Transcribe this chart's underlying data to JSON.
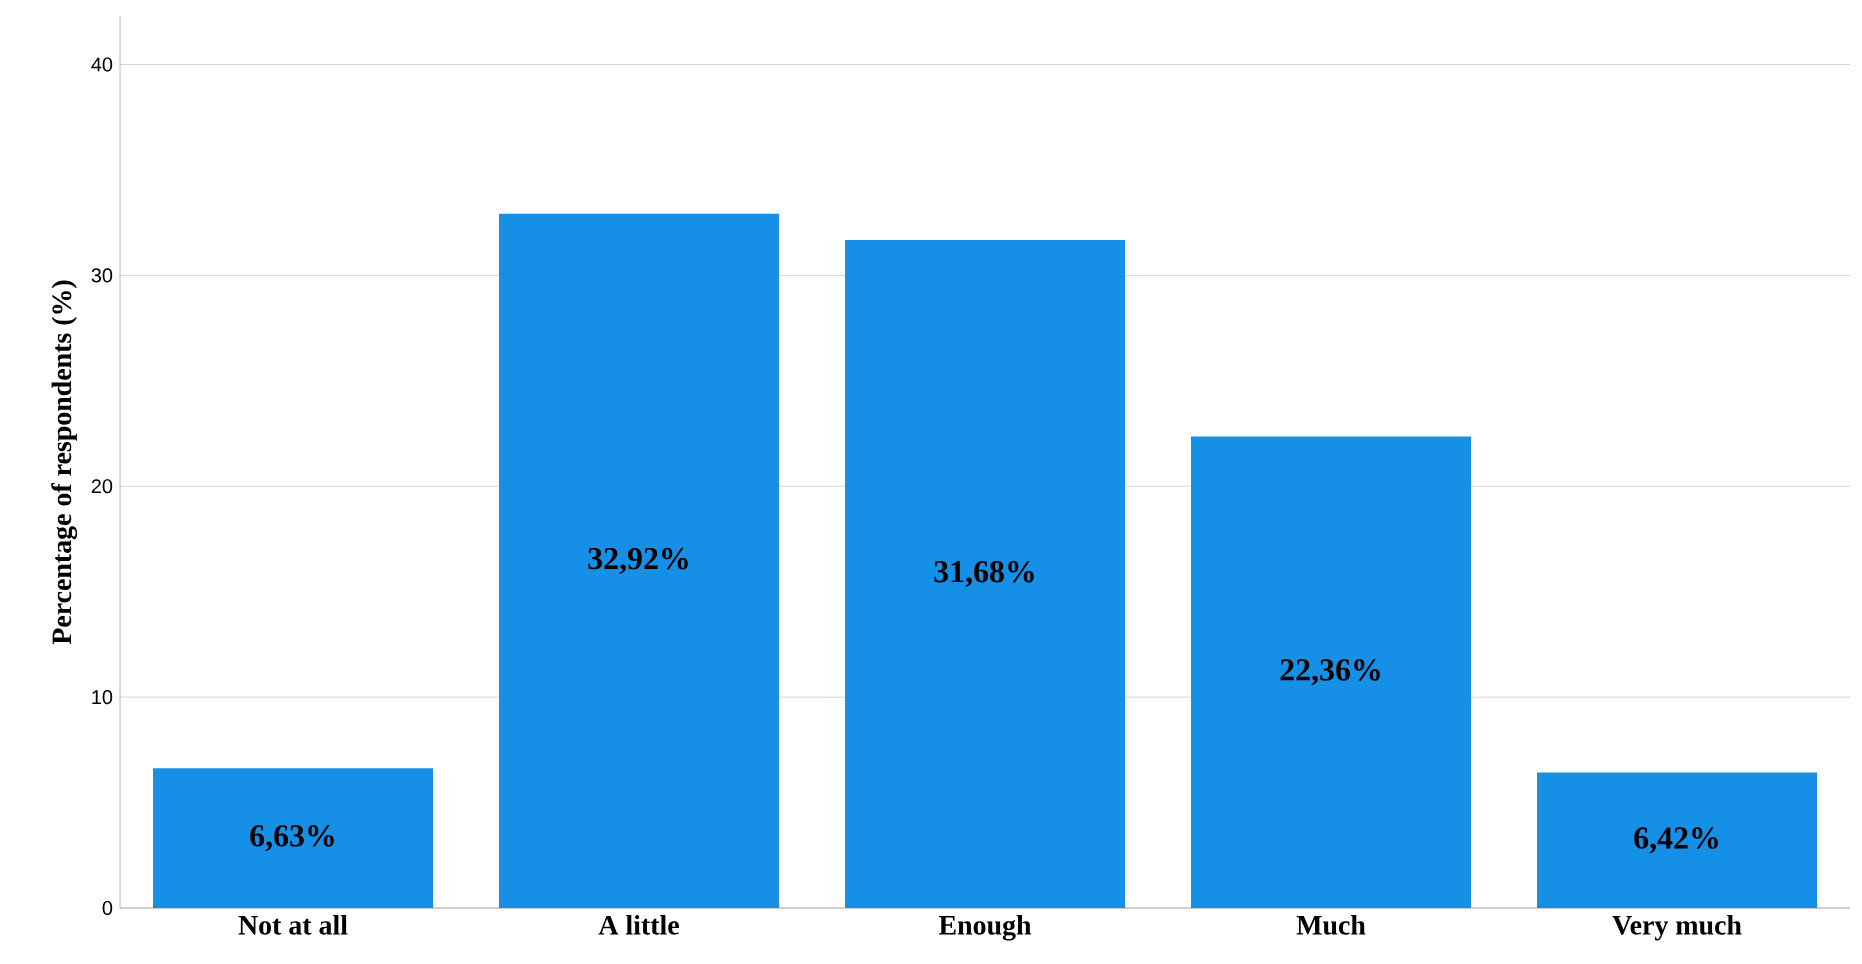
{
  "chart_data": {
    "type": "bar",
    "ylabel": "Percentage of respondents (%)",
    "categories": [
      "Not at all",
      "A little",
      "Enough",
      "Much",
      "Very much"
    ],
    "values": [
      6.63,
      32.92,
      31.68,
      22.36,
      6.42
    ],
    "value_labels": [
      "6,63%",
      "32,92%",
      "31,68%",
      "22,36%",
      "6,42%"
    ],
    "color": "#1690e6",
    "ylim": [
      0,
      42.3
    ],
    "yticks": [
      0,
      10,
      20,
      30,
      40
    ],
    "grid": "y"
  }
}
